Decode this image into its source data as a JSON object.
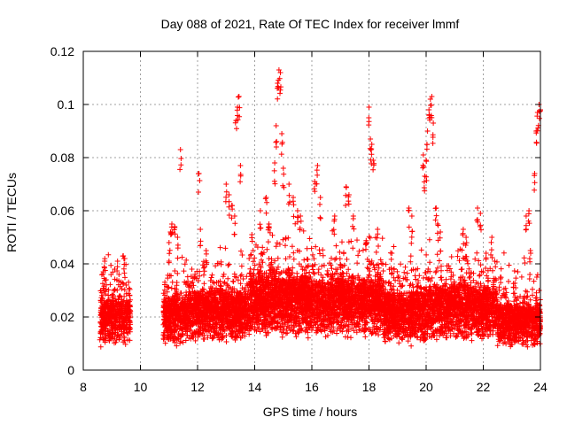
{
  "chart_data": {
    "type": "scatter",
    "title": "Day 088 of 2021, Rate Of TEC Index for receiver lmmf",
    "xlabel": "GPS time / hours",
    "ylabel": "ROTI / TECUs",
    "xlim": [
      8,
      24
    ],
    "ylim": [
      0,
      0.12
    ],
    "xticks": [
      8,
      10,
      12,
      14,
      16,
      18,
      20,
      22,
      24
    ],
    "xtick_labels": [
      "8",
      "10",
      "12",
      "14",
      "16",
      "18",
      "20",
      "22",
      "24"
    ],
    "yticks": [
      0,
      0.02,
      0.04,
      0.06,
      0.08,
      0.1,
      0.12
    ],
    "ytick_labels": [
      "0",
      "0.02",
      "0.04",
      "0.06",
      "0.08",
      "0.1",
      "0.12"
    ],
    "grid": true,
    "marker": "+",
    "color": "#ff0000",
    "data_gap": [
      9.7,
      10.8
    ],
    "series": [
      {
        "name": "ROTI",
        "points": [
          [
            8.6,
            0.014
          ],
          [
            8.65,
            0.03
          ],
          [
            8.7,
            0.037
          ],
          [
            8.75,
            0.041
          ],
          [
            8.8,
            0.034
          ],
          [
            8.85,
            0.022
          ],
          [
            9.0,
            0.028
          ],
          [
            9.1,
            0.038
          ],
          [
            9.2,
            0.041
          ],
          [
            9.25,
            0.036
          ],
          [
            9.4,
            0.043
          ],
          [
            9.45,
            0.042
          ],
          [
            9.5,
            0.032
          ],
          [
            11.0,
            0.048
          ],
          [
            11.05,
            0.052
          ],
          [
            11.1,
            0.055
          ],
          [
            11.2,
            0.054
          ],
          [
            11.3,
            0.05
          ],
          [
            11.4,
            0.083
          ],
          [
            11.8,
            0.038
          ],
          [
            12.05,
            0.074
          ],
          [
            12.1,
            0.053
          ],
          [
            12.3,
            0.045
          ],
          [
            13.0,
            0.07
          ],
          [
            13.1,
            0.066
          ],
          [
            13.2,
            0.062
          ],
          [
            13.3,
            0.058
          ],
          [
            13.35,
            0.094
          ],
          [
            13.4,
            0.099
          ],
          [
            13.45,
            0.103
          ],
          [
            13.5,
            0.077
          ],
          [
            13.9,
            0.051
          ],
          [
            14.2,
            0.06
          ],
          [
            14.4,
            0.065
          ],
          [
            14.5,
            0.055
          ],
          [
            14.7,
            0.078
          ],
          [
            14.75,
            0.092
          ],
          [
            14.8,
            0.108
          ],
          [
            14.85,
            0.113
          ],
          [
            14.9,
            0.112
          ],
          [
            14.95,
            0.089
          ],
          [
            15.0,
            0.076
          ],
          [
            15.2,
            0.07
          ],
          [
            15.35,
            0.065
          ],
          [
            15.5,
            0.06
          ],
          [
            15.6,
            0.058
          ],
          [
            16.1,
            0.071
          ],
          [
            16.2,
            0.077
          ],
          [
            16.3,
            0.065
          ],
          [
            16.8,
            0.058
          ],
          [
            17.2,
            0.069
          ],
          [
            17.3,
            0.066
          ],
          [
            17.45,
            0.058
          ],
          [
            17.9,
            0.048
          ],
          [
            18.0,
            0.099
          ],
          [
            18.05,
            0.087
          ],
          [
            18.1,
            0.085
          ],
          [
            18.15,
            0.079
          ],
          [
            18.3,
            0.053
          ],
          [
            18.8,
            0.044
          ],
          [
            19.4,
            0.061
          ],
          [
            19.5,
            0.058
          ],
          [
            19.9,
            0.081
          ],
          [
            19.95,
            0.073
          ],
          [
            20.0,
            0.079
          ],
          [
            20.05,
            0.09
          ],
          [
            20.1,
            0.098
          ],
          [
            20.15,
            0.102
          ],
          [
            20.2,
            0.103
          ],
          [
            20.25,
            0.093
          ],
          [
            20.35,
            0.061
          ],
          [
            20.4,
            0.055
          ],
          [
            20.5,
            0.052
          ],
          [
            21.3,
            0.053
          ],
          [
            21.4,
            0.05
          ],
          [
            21.8,
            0.061
          ],
          [
            21.9,
            0.059
          ],
          [
            22.1,
            0.044
          ],
          [
            22.3,
            0.05
          ],
          [
            22.6,
            0.035
          ],
          [
            23.5,
            0.058
          ],
          [
            23.6,
            0.06
          ],
          [
            23.65,
            0.045
          ],
          [
            23.8,
            0.074
          ],
          [
            23.85,
            0.09
          ],
          [
            23.9,
            0.097
          ],
          [
            23.95,
            0.1
          ],
          [
            24.0,
            0.098
          ]
        ],
        "bands": [
          {
            "x_start": 8.6,
            "x_end": 9.65,
            "y_low": 0.004,
            "y_high": 0.027,
            "count": 460
          },
          {
            "x_start": 10.8,
            "x_end": 11.6,
            "y_low": 0.004,
            "y_high": 0.028,
            "count": 420
          },
          {
            "x_start": 11.6,
            "x_end": 13.8,
            "y_low": 0.005,
            "y_high": 0.03,
            "count": 1150
          },
          {
            "x_start": 13.8,
            "x_end": 15.8,
            "y_low": 0.006,
            "y_high": 0.036,
            "count": 1250
          },
          {
            "x_start": 15.8,
            "x_end": 18.5,
            "y_low": 0.006,
            "y_high": 0.035,
            "count": 1500
          },
          {
            "x_start": 18.5,
            "x_end": 20.0,
            "y_low": 0.004,
            "y_high": 0.03,
            "count": 850
          },
          {
            "x_start": 20.0,
            "x_end": 22.5,
            "y_low": 0.005,
            "y_high": 0.032,
            "count": 1300
          },
          {
            "x_start": 22.5,
            "x_end": 24.0,
            "y_low": 0.004,
            "y_high": 0.025,
            "count": 800
          }
        ]
      }
    ]
  }
}
